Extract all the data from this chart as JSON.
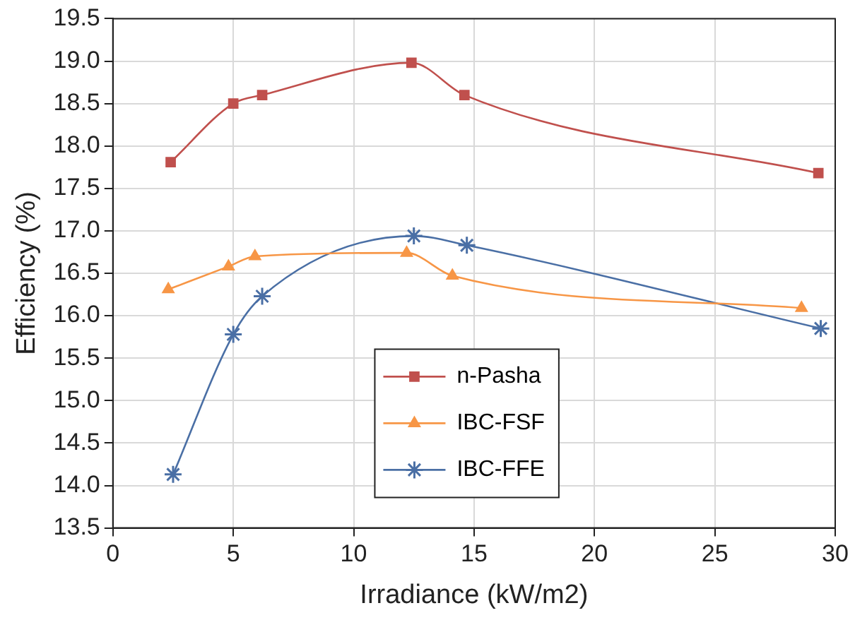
{
  "chart_data": {
    "type": "line",
    "xlabel": "Irradiance (kW/m2)",
    "ylabel": "Efficiency (%)",
    "xlim": [
      0,
      30
    ],
    "xticks": [
      0,
      5,
      10,
      15,
      20,
      25,
      30
    ],
    "ylim": [
      13.5,
      19.5
    ],
    "yticks": [
      {
        "value": 13.5,
        "label": "13.5"
      },
      {
        "value": 14,
        "label": "14.0"
      },
      {
        "value": 14.5,
        "label": "14.5"
      },
      {
        "value": 15,
        "label": "15.0"
      },
      {
        "value": 15.5,
        "label": "15.5"
      },
      {
        "value": 16,
        "label": "16.0"
      },
      {
        "value": 16.5,
        "label": "16.5"
      },
      {
        "value": 17,
        "label": "17.0"
      },
      {
        "value": 17.5,
        "label": "17.5"
      },
      {
        "value": 18,
        "label": "18.0"
      },
      {
        "value": 18.5,
        "label": "18.5"
      },
      {
        "value": 19,
        "label": "19.0"
      },
      {
        "value": 19.5,
        "label": "19.5"
      }
    ],
    "grid": true,
    "legend": "bottom",
    "line_style": "solid",
    "series": [
      {
        "name": "n-Pasha",
        "color": "#c0504d",
        "marker": "square",
        "x": [
          2.4,
          5.0,
          6.2,
          12.4,
          14.6,
          29.3
        ],
        "values": [
          17.81,
          18.5,
          18.6,
          18.98,
          18.6,
          17.68
        ]
      },
      {
        "name": "IBC-FSF",
        "color": "#f79646",
        "marker": "triangle",
        "x": [
          2.3,
          4.8,
          5.9,
          12.2,
          14.1,
          28.6
        ],
        "values": [
          16.31,
          16.58,
          16.7,
          16.74,
          16.47,
          16.09
        ]
      },
      {
        "name": "IBC-FFE",
        "color": "#4a6fa5",
        "marker": "cross",
        "x": [
          2.5,
          5.0,
          6.2,
          12.5,
          14.7,
          29.4
        ],
        "values": [
          14.13,
          15.78,
          16.23,
          16.94,
          16.83,
          15.85
        ]
      }
    ]
  }
}
